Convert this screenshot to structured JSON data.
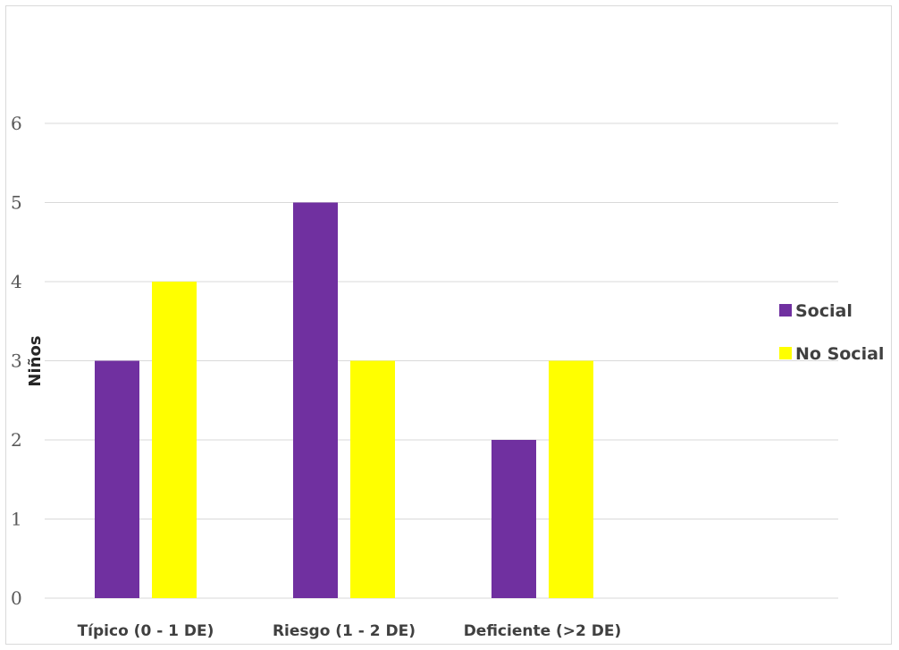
{
  "chart_data": {
    "type": "bar",
    "title": "",
    "xlabel": "",
    "ylabel": "Niños",
    "categories": [
      "Típico (0 - 1 DE)",
      "Riesgo (1 - 2 DE)",
      "Deficiente (>2 DE)"
    ],
    "series": [
      {
        "name": "Social",
        "values": [
          3,
          5,
          2
        ],
        "color": "#7030a0"
      },
      {
        "name": "No Social",
        "values": [
          4,
          3,
          3
        ],
        "color": "#ffff00"
      }
    ],
    "ylim": [
      0,
      6
    ],
    "yticks": [
      0,
      1,
      2,
      3,
      4,
      5,
      6
    ],
    "grid": true,
    "legend_position": "right"
  }
}
